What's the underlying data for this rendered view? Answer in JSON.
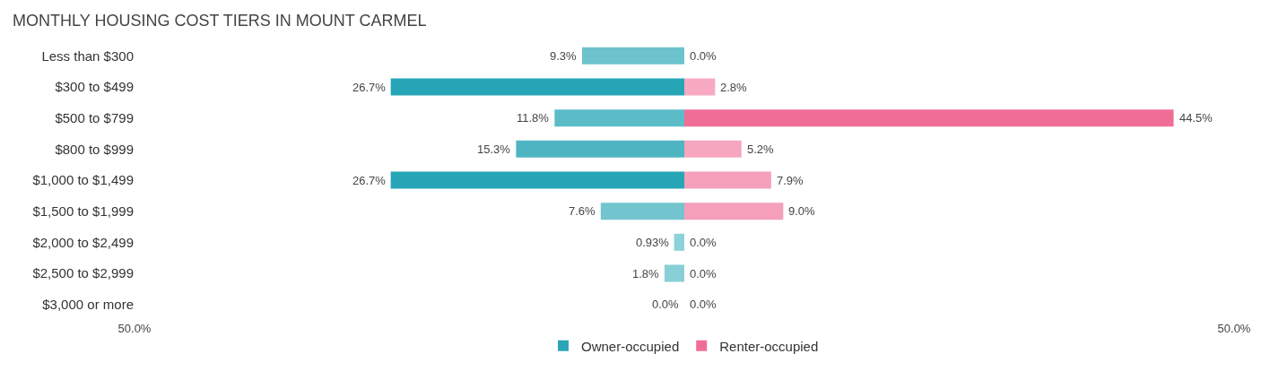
{
  "chart_data": {
    "type": "bar",
    "orientation": "horizontal",
    "title": "MONTHLY HOUSING COST TIERS IN MOUNT CARMEL",
    "categories": [
      "Less than $300",
      "$300 to $499",
      "$500 to $799",
      "$800 to $999",
      "$1,000 to $1,499",
      "$1,500 to $1,999",
      "$2,000 to $2,499",
      "$2,500 to $2,999",
      "$3,000 or more"
    ],
    "series": [
      {
        "name": "Owner-occupied",
        "color": "#2aa6b8",
        "colors": [
          "#6cc3cd",
          "#25a5b6",
          "#5bbcc8",
          "#4fb5c3",
          "#25a5b6",
          "#72c5cf",
          "#8dd1d9",
          "#89cfd7",
          "#91d3db"
        ],
        "base": [
          -9.3,
          -26.7,
          -11.8,
          -15.3,
          -26.7,
          -7.6,
          -0.93,
          -1.8,
          null
        ],
        "values": [
          9.3,
          26.7,
          11.8,
          15.3,
          26.7,
          7.6,
          0.93,
          1.8,
          0.0
        ],
        "value_labels": [
          "9.3%",
          "26.7%",
          "11.8%",
          "15.3%",
          "26.7%",
          "7.6%",
          "0.93%",
          "1.8%",
          "0.0%"
        ]
      },
      {
        "name": "Renter-occupied",
        "color": "#f06e96",
        "colors": [
          "#f8b3c8",
          "#f7aac2",
          "#f06e96",
          "#f7a6bf",
          "#f5a0bb",
          "#f59fba",
          "#f8b3c8",
          "#f8b3c8",
          "#f8b3c8"
        ],
        "values": [
          0.0,
          2.8,
          44.5,
          5.2,
          7.9,
          9.0,
          0.0,
          0.0,
          0.0
        ],
        "value_labels": [
          "0.0%",
          "2.8%",
          "44.5%",
          "5.2%",
          "7.9%",
          "9.0%",
          "0.0%",
          "0.0%",
          "0.0%"
        ]
      }
    ],
    "xlim": [
      -50,
      50
    ],
    "xticks": [
      {
        "value": -50,
        "label": "50.0%"
      },
      {
        "value": 50,
        "label": "50.0%"
      }
    ],
    "legend": "bottom"
  }
}
